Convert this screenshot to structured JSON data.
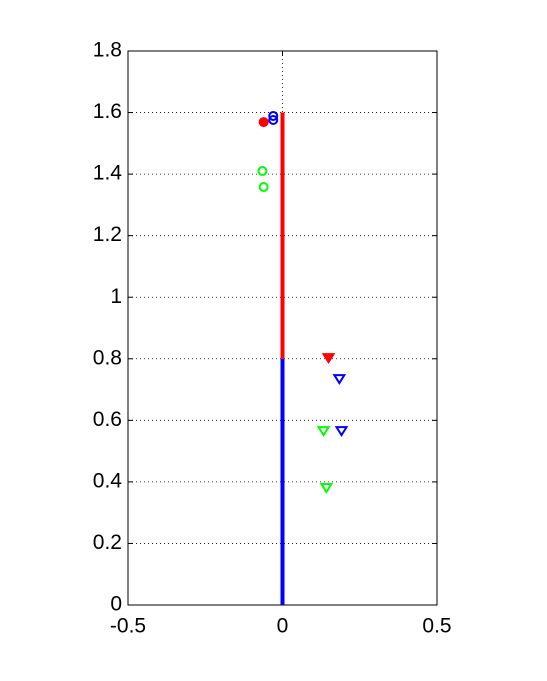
{
  "chart_data": {
    "type": "line",
    "xlim": [
      -0.5,
      0.5
    ],
    "xticks": [
      -0.5,
      0,
      0.5
    ],
    "ylim": [
      0,
      1.8
    ],
    "yticks": [
      0,
      0.2,
      0.4,
      0.6,
      0.8,
      1,
      1.2,
      1.4,
      1.6,
      1.8
    ],
    "grid": true,
    "series": [
      {
        "color": "#ff0000",
        "marker": "none",
        "x": [
          0,
          0
        ],
        "y": [
          0.8,
          1.6
        ]
      },
      {
        "color": "#0000ff",
        "marker": "none",
        "x": [
          0,
          0
        ],
        "y": [
          0,
          0.8
        ]
      },
      {
        "color": "#ff0000",
        "marker": "circle",
        "filled": true,
        "x": [
          -0.061
        ],
        "y": [
          1.569
        ]
      },
      {
        "color": "#0000ff",
        "marker": "circle",
        "filled": false,
        "x": [
          -0.03,
          -0.03
        ],
        "y": [
          1.589,
          1.576
        ]
      },
      {
        "color": "#00ff00",
        "marker": "circle",
        "filled": false,
        "x": [
          -0.065,
          -0.061
        ],
        "y": [
          1.41,
          1.358
        ]
      },
      {
        "color": "#ff0000",
        "marker": "triangle",
        "filled": true,
        "x": [
          0.149
        ],
        "y": [
          0.802
        ]
      },
      {
        "color": "#0000ff",
        "marker": "triangle",
        "filled": false,
        "x": [
          0.184,
          0.191
        ],
        "y": [
          0.734,
          0.565
        ]
      },
      {
        "color": "#00ff00",
        "marker": "triangle",
        "filled": false,
        "x": [
          0.133,
          0.142
        ],
        "y": [
          0.565,
          0.38
        ]
      }
    ]
  }
}
